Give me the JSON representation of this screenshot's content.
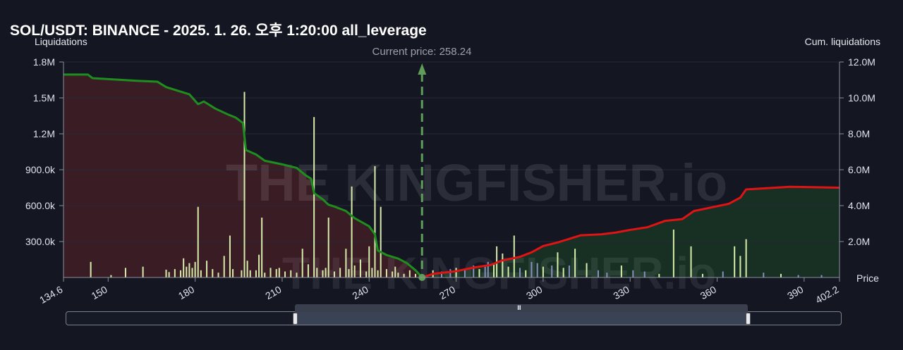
{
  "title": "SOL/USDT: BINANCE - 2025. 1. 26. 오후 1:20:00 all_leverage",
  "watermark": "THE KINGFISHER.io",
  "navigator": {
    "grip": "III"
  },
  "colors": {
    "background": "#141722",
    "short_side_line": "#1e8f1e",
    "long_side_line": "#e01414",
    "short_side_fill": "#3a1c25",
    "long_side_fill": "#173023",
    "bar": "#d8ecaa",
    "bar_alt": "#8a8fc2",
    "current_price": "#5e9e5a"
  },
  "chart_data": {
    "type": "bar",
    "ylabel": "Liquidations",
    "y2label": "Cum. liquidations",
    "xlabel": "Price",
    "xlim": [
      134.6,
      402.2
    ],
    "ylim": [
      0,
      1800000
    ],
    "y2lim": [
      0,
      12000000
    ],
    "x_ticks": [
      "134.6",
      "150",
      "180",
      "210",
      "240",
      "270",
      "300",
      "330",
      "360",
      "390",
      "402.2"
    ],
    "x_tick_values": [
      134.6,
      150,
      180,
      210,
      240,
      270,
      300,
      330,
      360,
      390,
      402.2
    ],
    "y_ticks": [
      "1.8M",
      "1.5M",
      "1.2M",
      "900.0k",
      "600.0k",
      "300.0k"
    ],
    "y_tick_values": [
      1800000,
      1500000,
      1200000,
      900000,
      600000,
      300000
    ],
    "y2_ticks": [
      "12.0M",
      "10.0M",
      "8.0M",
      "6.0M",
      "4.0M",
      "2.0M"
    ],
    "y2_tick_values": [
      12000000,
      10000000,
      8000000,
      6000000,
      4000000,
      2000000
    ],
    "current_price_label": "Current price: 258.24",
    "current_price": 258.24,
    "bars_left": [
      [
        144,
        130000
      ],
      [
        151,
        20000
      ],
      [
        156,
        80000
      ],
      [
        162,
        90000
      ],
      [
        170,
        65000
      ],
      [
        171,
        45000
      ],
      [
        173,
        70000
      ],
      [
        175,
        60000
      ],
      [
        176,
        160000
      ],
      [
        177,
        90000
      ],
      [
        178,
        120000
      ],
      [
        179,
        80000
      ],
      [
        180,
        130000
      ],
      [
        181,
        590000
      ],
      [
        182,
        60000
      ],
      [
        184,
        140000
      ],
      [
        186,
        70000
      ],
      [
        188,
        40000
      ],
      [
        190,
        180000
      ],
      [
        192,
        350000
      ],
      [
        193,
        70000
      ],
      [
        196,
        60000
      ],
      [
        197,
        1550000
      ],
      [
        198,
        140000
      ],
      [
        199,
        60000
      ],
      [
        201,
        60000
      ],
      [
        202,
        190000
      ],
      [
        203,
        500000
      ],
      [
        204,
        40000
      ],
      [
        206,
        80000
      ],
      [
        208,
        70000
      ],
      [
        209,
        80000
      ],
      [
        211,
        50000
      ],
      [
        213,
        60000
      ],
      [
        215,
        40000
      ],
      [
        217,
        240000
      ],
      [
        219,
        110000
      ],
      [
        221,
        1340000
      ],
      [
        222,
        80000
      ],
      [
        224,
        60000
      ],
      [
        225,
        80000
      ],
      [
        226,
        500000
      ],
      [
        228,
        50000
      ],
      [
        230,
        80000
      ],
      [
        232,
        240000
      ],
      [
        233,
        70000
      ],
      [
        234,
        760000
      ],
      [
        235,
        100000
      ],
      [
        237,
        150000
      ],
      [
        239,
        50000
      ],
      [
        240,
        260000
      ],
      [
        241,
        80000
      ],
      [
        242,
        930000
      ],
      [
        243,
        60000
      ],
      [
        244,
        590000
      ],
      [
        246,
        70000
      ],
      [
        248,
        50000
      ],
      [
        249,
        90000
      ],
      [
        250,
        40000
      ],
      [
        252,
        30000
      ],
      [
        254,
        60000
      ],
      [
        256,
        30000
      ]
    ],
    "bars_right": [
      [
        262,
        60000
      ],
      [
        265,
        50000
      ],
      [
        268,
        70000
      ],
      [
        270,
        80000
      ],
      [
        273,
        60000
      ],
      [
        276,
        100000
      ],
      [
        278,
        70000
      ],
      [
        280,
        90000
      ],
      [
        281,
        130000
      ],
      [
        283,
        110000
      ],
      [
        284,
        260000
      ],
      [
        286,
        200000
      ],
      [
        288,
        90000
      ],
      [
        290,
        350000
      ],
      [
        292,
        80000
      ],
      [
        294,
        60000
      ],
      [
        296,
        130000
      ],
      [
        298,
        120000
      ],
      [
        300,
        90000
      ],
      [
        303,
        100000
      ],
      [
        305,
        210000
      ],
      [
        307,
        80000
      ],
      [
        309,
        100000
      ],
      [
        311,
        240000
      ],
      [
        315,
        120000
      ],
      [
        319,
        60000
      ],
      [
        322,
        40000
      ],
      [
        327,
        100000
      ],
      [
        331,
        60000
      ],
      [
        335,
        50000
      ],
      [
        340,
        30000
      ],
      [
        345,
        400000
      ],
      [
        351,
        260000
      ],
      [
        355,
        30000
      ],
      [
        362,
        50000
      ],
      [
        366,
        260000
      ],
      [
        368,
        180000
      ],
      [
        370,
        320000
      ],
      [
        376,
        40000
      ],
      [
        382,
        30000
      ],
      [
        388,
        20000
      ],
      [
        396,
        20000
      ]
    ],
    "cum_short": [
      [
        134.6,
        11.3
      ],
      [
        143,
        11.3
      ],
      [
        144.6,
        11.1
      ],
      [
        160,
        10.95
      ],
      [
        167,
        10.9
      ],
      [
        170,
        10.6
      ],
      [
        178,
        10.2
      ],
      [
        181,
        9.65
      ],
      [
        183,
        9.8
      ],
      [
        187,
        9.4
      ],
      [
        191,
        9.1
      ],
      [
        194,
        8.9
      ],
      [
        196.5,
        8.6
      ],
      [
        197.5,
        7.1
      ],
      [
        201,
        6.85
      ],
      [
        204,
        6.5
      ],
      [
        210,
        6.3
      ],
      [
        215,
        6.1
      ],
      [
        218,
        5.7
      ],
      [
        220,
        5.5
      ],
      [
        221,
        4.7
      ],
      [
        224,
        4.35
      ],
      [
        226,
        4.05
      ],
      [
        228,
        3.95
      ],
      [
        232,
        3.7
      ],
      [
        235,
        3.3
      ],
      [
        240,
        2.85
      ],
      [
        242,
        2.4
      ],
      [
        243,
        1.5
      ],
      [
        246,
        1.25
      ],
      [
        250,
        1.05
      ],
      [
        253,
        0.8
      ],
      [
        256,
        0.4
      ],
      [
        258.24,
        0
      ]
    ],
    "cum_long": [
      [
        258.24,
        0
      ],
      [
        262,
        0.2
      ],
      [
        270,
        0.35
      ],
      [
        276,
        0.55
      ],
      [
        282,
        0.7
      ],
      [
        286,
        0.95
      ],
      [
        292,
        1.15
      ],
      [
        296,
        1.4
      ],
      [
        300,
        1.75
      ],
      [
        305,
        1.95
      ],
      [
        309,
        2.15
      ],
      [
        313,
        2.35
      ],
      [
        320,
        2.4
      ],
      [
        325,
        2.5
      ],
      [
        330,
        2.65
      ],
      [
        336,
        2.8
      ],
      [
        342,
        3.15
      ],
      [
        348,
        3.25
      ],
      [
        352,
        3.7
      ],
      [
        358,
        3.9
      ],
      [
        364,
        4.1
      ],
      [
        368,
        4.45
      ],
      [
        370,
        4.9
      ],
      [
        375,
        4.95
      ],
      [
        385,
        5.05
      ],
      [
        402.2,
        5.0
      ]
    ]
  }
}
